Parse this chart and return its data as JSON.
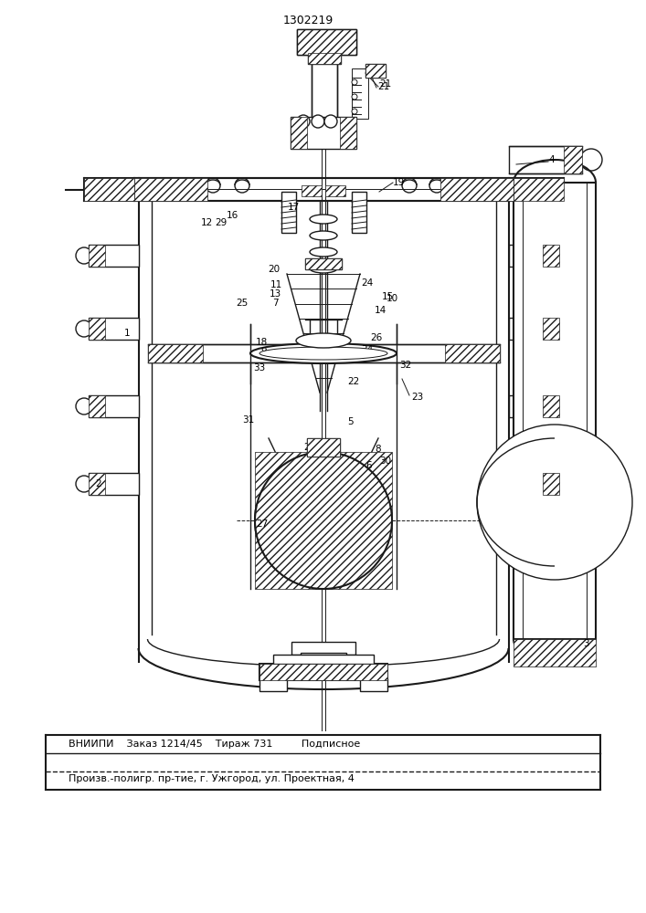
{
  "patent_number": "1302219",
  "footer_line1": "ВНИИПИ    Заказ 1214/45    Тираж 731         Подписное",
  "footer_line2": "Произв.-полигр. пр-тие, г. Ужгород, ул. Проектная, 4",
  "bg_color": "#ffffff",
  "lc": "#1a1a1a"
}
